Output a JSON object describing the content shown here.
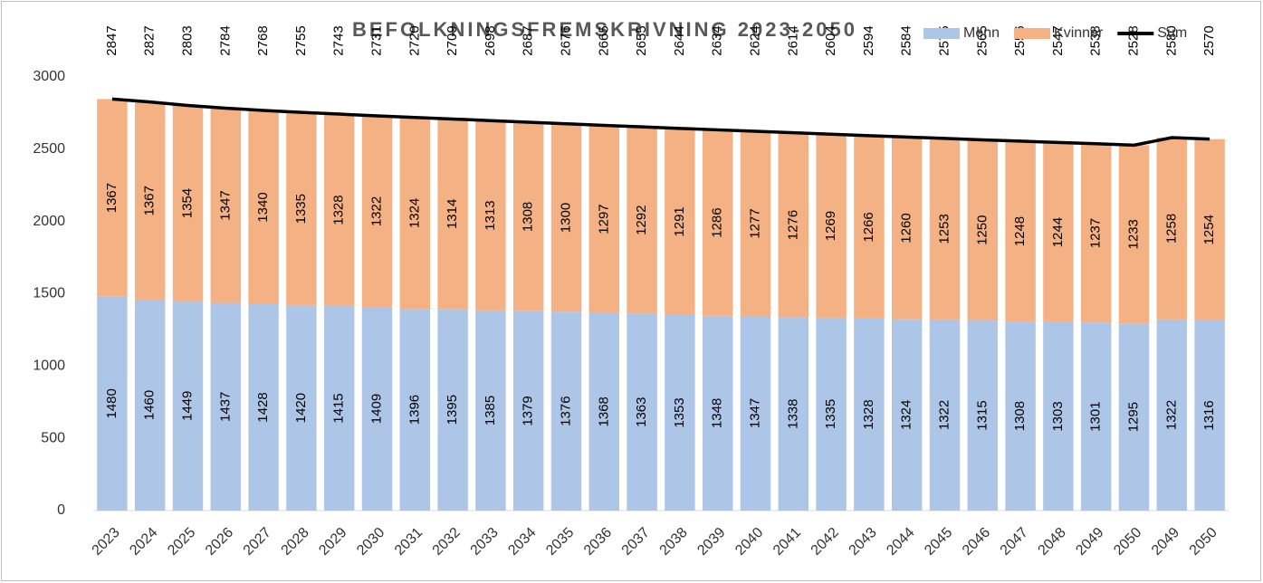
{
  "chart_data": {
    "type": "bar",
    "stacked": true,
    "title": "BEFOLKNINGSFREMSKRIVNING 2023-2050",
    "categories": [
      "2023",
      "2024",
      "2025",
      "2026",
      "2027",
      "2028",
      "2029",
      "2030",
      "2031",
      "2032",
      "2033",
      "2034",
      "2035",
      "2036",
      "2037",
      "2038",
      "2039",
      "2040",
      "2041",
      "2042",
      "2043",
      "2044",
      "2045",
      "2046",
      "2047",
      "2048",
      "2049",
      "2050",
      "2049",
      "2050"
    ],
    "series": [
      {
        "name": "Menn",
        "color": "#adc5e7",
        "values": [
          1480,
          1460,
          1449,
          1437,
          1428,
          1420,
          1415,
          1409,
          1396,
          1395,
          1385,
          1379,
          1376,
          1368,
          1363,
          1353,
          1348,
          1347,
          1338,
          1335,
          1328,
          1324,
          1322,
          1315,
          1308,
          1303,
          1301,
          1295,
          1322,
          1316
        ]
      },
      {
        "name": "Kvinner",
        "color": "#f4b183",
        "values": [
          1367,
          1367,
          1354,
          1347,
          1340,
          1335,
          1328,
          1322,
          1324,
          1314,
          1313,
          1308,
          1300,
          1297,
          1292,
          1291,
          1286,
          1277,
          1276,
          1269,
          1266,
          1260,
          1253,
          1250,
          1248,
          1244,
          1237,
          1233,
          1258,
          1254
        ]
      },
      {
        "name": "Sum",
        "type": "line",
        "color": "#000000",
        "values": [
          2847,
          2827,
          2803,
          2784,
          2768,
          2755,
          2743,
          2731,
          2720,
          2709,
          2698,
          2687,
          2676,
          2665,
          2655,
          2644,
          2634,
          2624,
          2614,
          2604,
          2594,
          2584,
          2575,
          2565,
          2556,
          2547,
          2538,
          2528,
          2580,
          2570
        ]
      }
    ],
    "ylim": [
      0,
      3000
    ],
    "yticks": [
      0,
      500,
      1000,
      1500,
      2000,
      2500,
      3000
    ],
    "grid": false,
    "legend": "top-right"
  }
}
